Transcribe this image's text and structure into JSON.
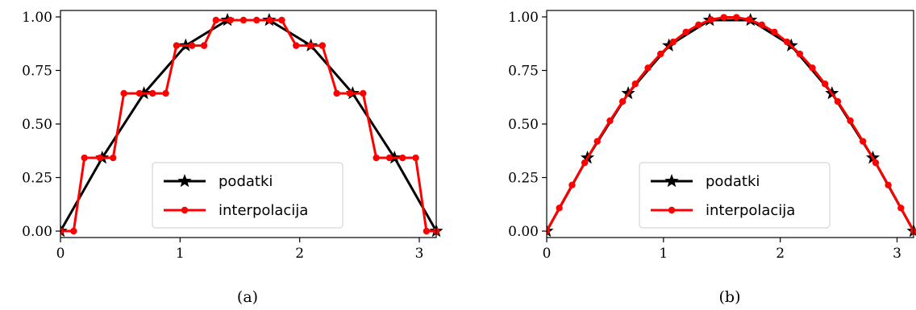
{
  "chart_data": [
    {
      "type": "line",
      "caption": "(a)",
      "xlim": [
        0,
        3.14159
      ],
      "ylim": [
        -0.03,
        1.03
      ],
      "xticks": [
        0,
        1,
        2,
        3
      ],
      "xtick_labels": [
        "0",
        "1",
        "2",
        "3"
      ],
      "yticks": [
        0,
        0.25,
        0.5,
        0.75,
        1.0
      ],
      "ytick_labels": [
        "0.00",
        "0.25",
        "0.50",
        "0.75",
        "1.00"
      ],
      "grid": false,
      "legend_position": "lower-center",
      "series": [
        {
          "name": "podatki",
          "color": "#000000",
          "marker": "star",
          "x": [
            0,
            0.349,
            0.698,
            1.047,
            1.396,
            1.745,
            2.094,
            2.443,
            2.793,
            3.142
          ],
          "y": [
            0,
            0.342,
            0.643,
            0.866,
            0.985,
            0.985,
            0.866,
            0.643,
            0.342,
            0
          ]
        },
        {
          "name": "interpolacija",
          "color": "#ff0000",
          "marker": "circle",
          "x": [
            0,
            0.11,
            0.2,
            0.33,
            0.44,
            0.53,
            0.66,
            0.77,
            0.88,
            0.97,
            1.1,
            1.2,
            1.3,
            1.42,
            1.53,
            1.64,
            1.75,
            1.85,
            1.97,
            2.09,
            2.19,
            2.31,
            2.42,
            2.53,
            2.64,
            2.75,
            2.86,
            2.97,
            3.06,
            3.142
          ],
          "y": [
            0,
            0,
            0.342,
            0.342,
            0.342,
            0.643,
            0.643,
            0.643,
            0.643,
            0.866,
            0.866,
            0.866,
            0.985,
            0.985,
            0.985,
            0.985,
            0.985,
            0.985,
            0.866,
            0.866,
            0.866,
            0.643,
            0.643,
            0.643,
            0.342,
            0.342,
            0.342,
            0.342,
            0,
            0
          ]
        }
      ]
    },
    {
      "type": "line",
      "caption": "(b)",
      "xlim": [
        0,
        3.14159
      ],
      "ylim": [
        -0.03,
        1.03
      ],
      "xticks": [
        0,
        1,
        2,
        3
      ],
      "xtick_labels": [
        "0",
        "1",
        "2",
        "3"
      ],
      "yticks": [
        0,
        0.25,
        0.5,
        0.75,
        1.0
      ],
      "ytick_labels": [
        "0.00",
        "0.25",
        "0.50",
        "0.75",
        "1.00"
      ],
      "grid": false,
      "legend_position": "lower-center",
      "series": [
        {
          "name": "podatki",
          "color": "#000000",
          "marker": "star",
          "x": [
            0,
            0.349,
            0.698,
            1.047,
            1.396,
            1.745,
            2.094,
            2.443,
            2.793,
            3.142
          ],
          "y": [
            0,
            0.342,
            0.643,
            0.866,
            0.985,
            0.985,
            0.866,
            0.643,
            0.342,
            0
          ]
        },
        {
          "name": "interpolacija",
          "color": "#ff0000",
          "marker": "circle",
          "x": [
            0,
            0.108,
            0.217,
            0.325,
            0.433,
            0.542,
            0.65,
            0.758,
            0.867,
            0.975,
            1.083,
            1.192,
            1.3,
            1.408,
            1.517,
            1.625,
            1.733,
            1.842,
            1.95,
            2.058,
            2.167,
            2.275,
            2.383,
            2.492,
            2.6,
            2.708,
            2.817,
            2.925,
            3.033,
            3.142
          ],
          "y": [
            0,
            0.108,
            0.215,
            0.319,
            0.419,
            0.515,
            0.605,
            0.687,
            0.762,
            0.827,
            0.883,
            0.929,
            0.963,
            0.987,
            0.998,
            0.998,
            0.987,
            0.963,
            0.929,
            0.883,
            0.827,
            0.762,
            0.687,
            0.605,
            0.515,
            0.419,
            0.319,
            0.215,
            0.108,
            0
          ]
        }
      ]
    }
  ]
}
